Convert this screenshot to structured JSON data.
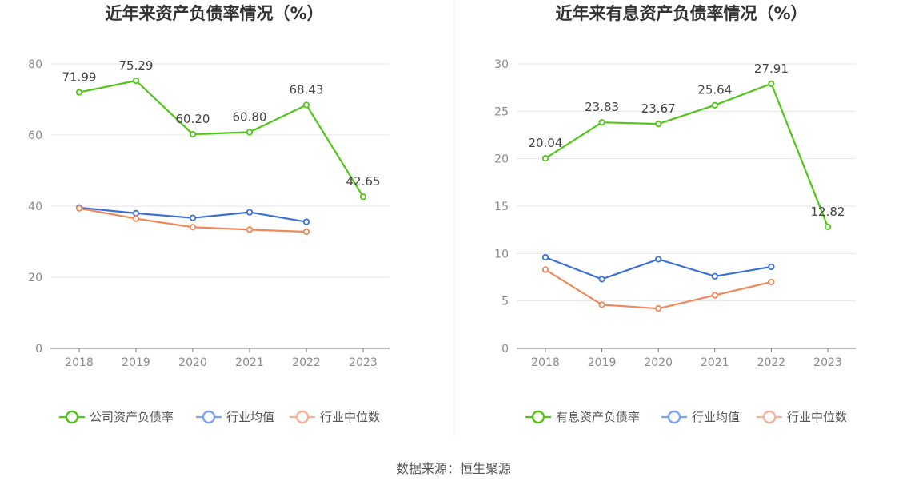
{
  "source_label": "数据来源：恒生聚源",
  "colors": {
    "green": "#52c41a",
    "blue": "#3a6fd8",
    "orange": "#f0875a",
    "legend_blue": "#7ea3f2",
    "legend_orange": "#f7b39a"
  },
  "chart_data": [
    {
      "type": "line",
      "title": "近年来资产负债率情况（%）",
      "xlabel": "",
      "ylabel": "",
      "categories": [
        "2018",
        "2019",
        "2020",
        "2021",
        "2022",
        "2023"
      ],
      "ylim": [
        0,
        80
      ],
      "yticks": [
        0,
        20,
        40,
        60,
        80
      ],
      "grid": true,
      "legend_position": "bottom",
      "series": [
        {
          "name": "公司资产负债率",
          "color_key": "green",
          "legend_color_key": "green",
          "values": [
            71.99,
            75.29,
            60.2,
            60.8,
            68.43,
            42.65
          ],
          "labels": [
            "71.99",
            "75.29",
            "60.20",
            "60.80",
            "68.43",
            "42.65"
          ]
        },
        {
          "name": "行业均值",
          "color_key": "blue",
          "legend_color_key": "legend_blue",
          "values": [
            39.6,
            38.0,
            36.7,
            38.3,
            35.6,
            null
          ]
        },
        {
          "name": "行业中位数",
          "color_key": "orange",
          "legend_color_key": "legend_orange",
          "values": [
            39.4,
            36.5,
            34.1,
            33.4,
            32.8,
            null
          ]
        }
      ]
    },
    {
      "type": "line",
      "title": "近年来有息资产负债率情况（%）",
      "xlabel": "",
      "ylabel": "",
      "categories": [
        "2018",
        "2019",
        "2020",
        "2021",
        "2022",
        "2023"
      ],
      "ylim": [
        0,
        30
      ],
      "yticks": [
        0,
        5,
        10,
        15,
        20,
        25,
        30
      ],
      "grid": true,
      "legend_position": "bottom",
      "series": [
        {
          "name": "有息资产负债率",
          "color_key": "green",
          "legend_color_key": "green",
          "values": [
            20.04,
            23.83,
            23.67,
            25.64,
            27.91,
            12.82
          ],
          "labels": [
            "20.04",
            "23.83",
            "23.67",
            "25.64",
            "27.91",
            "12.82"
          ]
        },
        {
          "name": "行业均值",
          "color_key": "blue",
          "legend_color_key": "legend_blue",
          "values": [
            9.6,
            7.3,
            9.4,
            7.6,
            8.6,
            null
          ]
        },
        {
          "name": "行业中位数",
          "color_key": "orange",
          "legend_color_key": "legend_orange",
          "values": [
            8.3,
            4.6,
            4.2,
            5.6,
            7.0,
            null
          ]
        }
      ]
    }
  ]
}
